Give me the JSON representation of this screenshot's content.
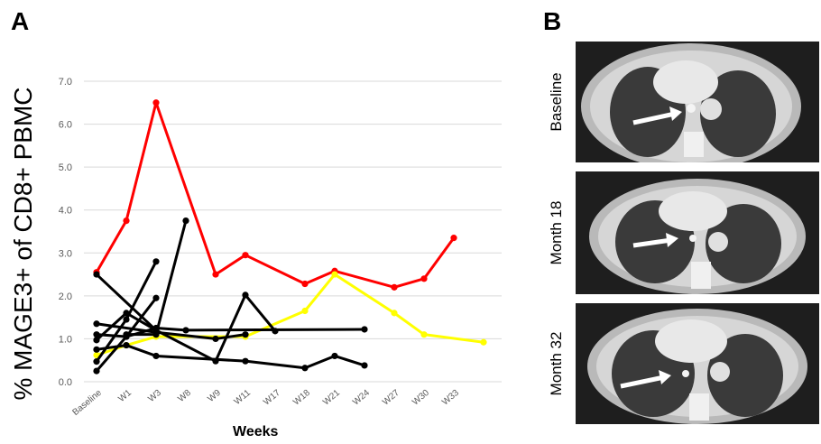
{
  "panels": {
    "a": "A",
    "b": "B"
  },
  "chart_data": {
    "type": "line",
    "ylabel": "% MAGE3+ of CD8+ PBMC",
    "xlabel": "Weeks",
    "categories": [
      "Baseline",
      "W1",
      "W3",
      "W8",
      "W9",
      "W11",
      "W17",
      "W18",
      "W21",
      "W24",
      "W27",
      "W30",
      "W33",
      ""
    ],
    "ylim": [
      0,
      7.0
    ],
    "yticks": [
      "0.0",
      "1.0",
      "2.0",
      "3.0",
      "4.0",
      "5.0",
      "6.0",
      "7.0"
    ],
    "grid": true,
    "series": [
      {
        "color": "#ff0000",
        "points": [
          [
            0,
            2.55
          ],
          [
            1,
            3.75
          ],
          [
            2,
            6.5
          ],
          [
            4,
            2.5
          ],
          [
            5,
            2.95
          ],
          [
            7,
            2.28
          ],
          [
            8,
            2.58
          ],
          [
            10,
            2.2
          ],
          [
            11,
            2.4
          ],
          [
            12,
            3.35
          ]
        ]
      },
      {
        "color": "#ffff00",
        "points": [
          [
            0,
            0.62
          ],
          [
            1,
            0.85
          ],
          [
            2,
            1.05
          ],
          [
            5,
            1.05
          ],
          [
            7,
            1.65
          ],
          [
            8,
            2.5
          ],
          [
            10,
            1.6
          ],
          [
            11,
            1.1
          ],
          [
            13,
            0.92
          ]
        ]
      },
      {
        "color": "#000000",
        "points": [
          [
            0,
            2.5
          ],
          [
            2,
            1.2
          ],
          [
            4,
            0.48
          ],
          [
            5,
            2.02
          ],
          [
            6,
            1.18
          ]
        ]
      },
      {
        "color": "#000000",
        "points": [
          [
            0,
            1.35
          ],
          [
            2,
            1.15
          ],
          [
            4,
            1.0
          ],
          [
            5,
            1.1
          ]
        ]
      },
      {
        "color": "#000000",
        "points": [
          [
            0,
            1.1
          ],
          [
            1,
            1.05
          ],
          [
            2,
            1.25
          ],
          [
            3,
            1.2
          ],
          [
            9,
            1.22
          ]
        ]
      },
      {
        "color": "#000000",
        "points": [
          [
            0,
            0.97
          ],
          [
            1,
            1.6
          ],
          [
            2,
            1.2
          ]
        ]
      },
      {
        "color": "#000000",
        "points": [
          [
            0,
            0.75
          ],
          [
            1,
            0.85
          ],
          [
            2,
            0.6
          ],
          [
            5,
            0.48
          ],
          [
            7,
            0.32
          ],
          [
            8,
            0.6
          ],
          [
            9,
            0.38
          ]
        ]
      },
      {
        "color": "#000000",
        "points": [
          [
            0,
            0.47
          ],
          [
            1,
            1.45
          ],
          [
            2,
            2.8
          ]
        ]
      },
      {
        "color": "#000000",
        "points": [
          [
            0,
            0.25
          ],
          [
            1,
            1.05
          ],
          [
            2,
            1.95
          ]
        ]
      },
      {
        "color": "#000000",
        "points": [
          [
            1,
            1.1
          ],
          [
            2,
            1.1
          ],
          [
            3,
            3.75
          ]
        ]
      }
    ]
  },
  "scans": [
    {
      "label": "Baseline"
    },
    {
      "label": "Month 18"
    },
    {
      "label": "Month 32"
    }
  ]
}
